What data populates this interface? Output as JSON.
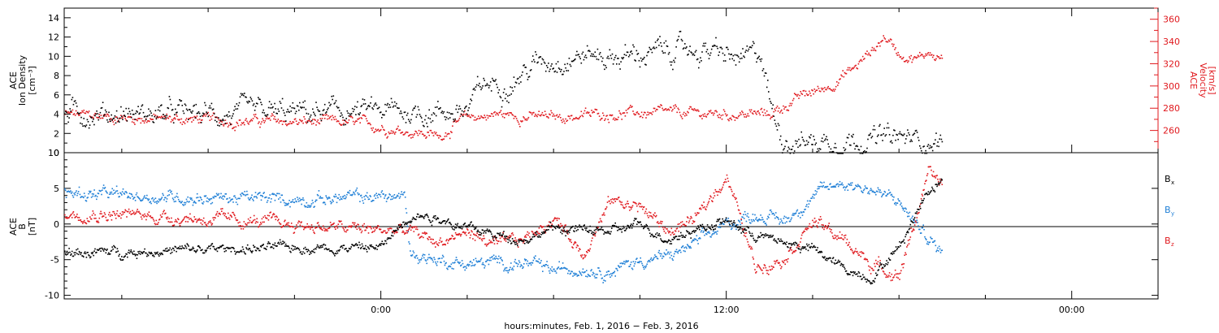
{
  "colors": {
    "black": "#000000",
    "red": "#e0191e",
    "blue": "#1f7fd6"
  },
  "footer": {
    "xlabel": "hours:minutes, Feb.  1, 2016 − Feb.  3, 2016"
  },
  "chart_data": [
    {
      "type": "scatter",
      "panel": "plasma",
      "left_axis": {
        "label_line1": "ACE",
        "label_line2": "Ion Density",
        "label_line3": "[cm⁻³]",
        "ylim": [
          0,
          15
        ],
        "ticks": [
          0,
          2,
          4,
          6,
          8,
          10,
          12,
          14
        ]
      },
      "right_axis": {
        "label_line1": "ACE",
        "label_line2": "Velocity",
        "label_line3": "[km/s]",
        "ylim": [
          240,
          370
        ],
        "ticks": [
          260,
          280,
          300,
          320,
          340,
          360
        ]
      },
      "x_range_hours": [
        -11,
        27
      ],
      "series": [
        {
          "axis": "left",
          "color": "#000000",
          "knots_x": [
            -11,
            -5,
            -2,
            1,
            3,
            3.5,
            4.5,
            5.5,
            7,
            8,
            9,
            10.5,
            11.5,
            12.5,
            13.2,
            13.6,
            14,
            15,
            17,
            19.5
          ],
          "knots_y": [
            4.2,
            4.0,
            4.2,
            4.3,
            4.4,
            7.0,
            7.5,
            9.5,
            10.3,
            10.0,
            10.2,
            10.8,
            10.5,
            9.5,
            10.3,
            4.0,
            1.5,
            1.2,
            1.6,
            1.3
          ]
        },
        {
          "axis": "right",
          "color": "#e0191e",
          "knots_x": [
            -11,
            -9,
            -3,
            -1,
            0.5,
            1.5,
            2.0,
            2.5,
            3.0,
            4.0,
            6.0,
            8.0,
            13.5,
            14.5,
            15.5,
            16.5,
            17.5,
            18.0,
            18.7,
            19.0,
            19.5
          ],
          "knots_y": [
            275,
            272,
            268,
            267,
            262,
            258,
            255,
            265,
            272,
            275,
            272,
            276,
            275,
            290,
            300,
            318,
            345,
            330,
            325,
            332,
            325
          ]
        }
      ]
    },
    {
      "type": "scatter",
      "panel": "magnetic field",
      "left_axis": {
        "label_line1": "ACE",
        "label_line2": "B",
        "label_line3": "[nT]",
        "ylim": [
          -10.5,
          10
        ],
        "ticks": [
          -10,
          -5,
          0,
          5,
          10
        ]
      },
      "x_range_hours": [
        -11,
        27
      ],
      "x_ticks": [
        "0:00",
        "12:00",
        "00:00"
      ],
      "legend": [
        "Bx",
        "By",
        "Bz"
      ],
      "series": [
        {
          "name": "Bx",
          "color": "#000000",
          "knots_x": [
            -11,
            -6,
            -3,
            0,
            1,
            2,
            3,
            4,
            5,
            6,
            7,
            8,
            9,
            10,
            11,
            12,
            13,
            14,
            15,
            16,
            17,
            18,
            19,
            19.5
          ],
          "knots_y": [
            -4.0,
            -3.5,
            -3.2,
            -3.2,
            1.5,
            1.0,
            -0.5,
            -1.5,
            -2.0,
            -0.5,
            -0.8,
            -1.0,
            0.0,
            -2.0,
            -0.5,
            0.5,
            -1.5,
            -2.5,
            -3.5,
            -6.0,
            -7.5,
            -3.0,
            5.0,
            6.5
          ]
        },
        {
          "name": "By",
          "color": "#1f7fd6",
          "knots_x": [
            -11,
            -9,
            -6,
            -3,
            -1,
            0.8,
            1.0,
            2,
            3,
            4,
            5,
            6,
            7,
            8,
            9,
            10,
            11,
            12,
            13,
            14,
            15,
            16,
            17,
            18,
            19,
            19.5
          ],
          "knots_y": [
            4.5,
            4.0,
            3.8,
            3.5,
            3.8,
            4.0,
            -4.0,
            -5.0,
            -5.5,
            -5.3,
            -5.5,
            -6.5,
            -6.0,
            -6.5,
            -5.0,
            -4.5,
            -2.5,
            0.0,
            1.5,
            0.5,
            4.0,
            6.0,
            5.0,
            3.0,
            -2.0,
            -4.0
          ]
        },
        {
          "name": "Bz",
          "color": "#e0191e",
          "knots_x": [
            -11,
            -7,
            -4,
            -2,
            0,
            1,
            2,
            3,
            4,
            5,
            6,
            7,
            8,
            9,
            10,
            11,
            12,
            13,
            14,
            15,
            16,
            17,
            18,
            19,
            19.5
          ],
          "knots_y": [
            1.8,
            1.0,
            0.3,
            -0.3,
            -0.8,
            -1.0,
            -2.5,
            -1.0,
            -3.0,
            -2.0,
            1.0,
            -4.0,
            3.5,
            2.5,
            -1.0,
            1.0,
            7.0,
            -6.0,
            -4.5,
            0.5,
            -2.0,
            -5.5,
            -7.0,
            7.0,
            5.5
          ]
        }
      ]
    }
  ]
}
